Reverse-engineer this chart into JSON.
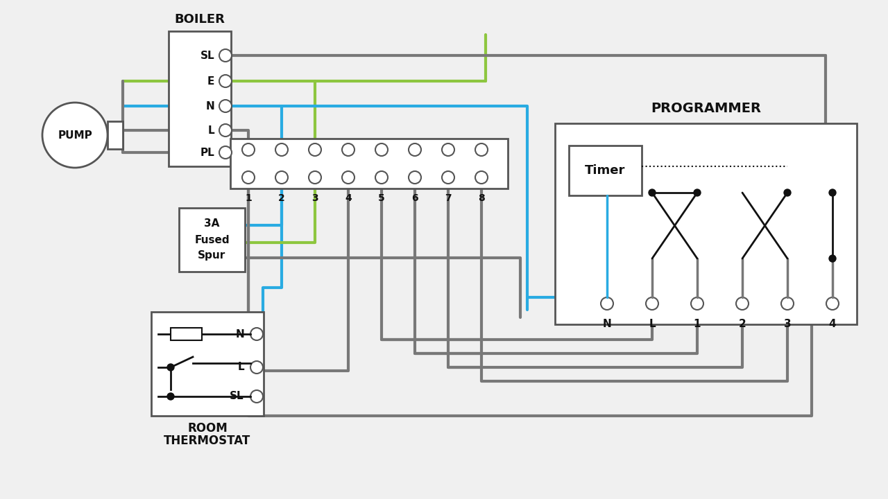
{
  "bg": "#f0f0f0",
  "gray": "#787878",
  "blue": "#29abe2",
  "green": "#8dc63f",
  "black": "#111111",
  "white": "#ffffff",
  "border": "#555555",
  "boiler_label": "BOILER",
  "boiler_terminals": [
    "SL",
    "E",
    "N",
    "L",
    "PL"
  ],
  "jbox_terminals": [
    "1",
    "2",
    "3",
    "4",
    "5",
    "6",
    "7",
    "8"
  ],
  "programmer_label": "PROGRAMMER",
  "programmer_terminals": [
    "N",
    "L",
    "1",
    "2",
    "3",
    "4"
  ],
  "thermostat_terminals": [
    "N",
    "L",
    "SL"
  ],
  "pump_label": "PUMP",
  "thermostat_label_1": "ROOM",
  "thermostat_label_2": "THERMOSTAT",
  "fused_spur_label": [
    "3A",
    "Fused",
    "Spur"
  ],
  "timer_label": "Timer"
}
